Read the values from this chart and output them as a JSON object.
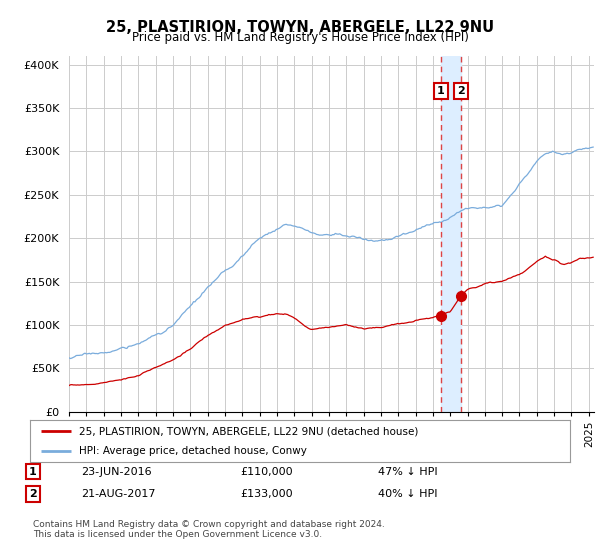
{
  "title": "25, PLASTIRION, TOWYN, ABERGELE, LL22 9NU",
  "subtitle": "Price paid vs. HM Land Registry's House Price Index (HPI)",
  "legend_label_red": "25, PLASTIRION, TOWYN, ABERGELE, LL22 9NU (detached house)",
  "legend_label_blue": "HPI: Average price, detached house, Conwy",
  "transaction1_date": "23-JUN-2016",
  "transaction1_price": "£110,000",
  "transaction1_hpi": "47% ↓ HPI",
  "transaction2_date": "21-AUG-2017",
  "transaction2_price": "£133,000",
  "transaction2_hpi": "40% ↓ HPI",
  "footer": "Contains HM Land Registry data © Crown copyright and database right 2024.\nThis data is licensed under the Open Government Licence v3.0.",
  "vline1_x": 2016.47,
  "vline2_x": 2017.63,
  "dot1_x": 2016.47,
  "dot1_y": 110000,
  "dot2_x": 2017.63,
  "dot2_y": 133000,
  "ylim": [
    0,
    410000
  ],
  "xlim_start": 1995.0,
  "xlim_end": 2025.3,
  "red_color": "#cc0000",
  "blue_color": "#7aacdc",
  "shade_color": "#ddeeff",
  "vline_color": "#dd4444",
  "background_color": "#ffffff",
  "grid_color": "#cccccc"
}
